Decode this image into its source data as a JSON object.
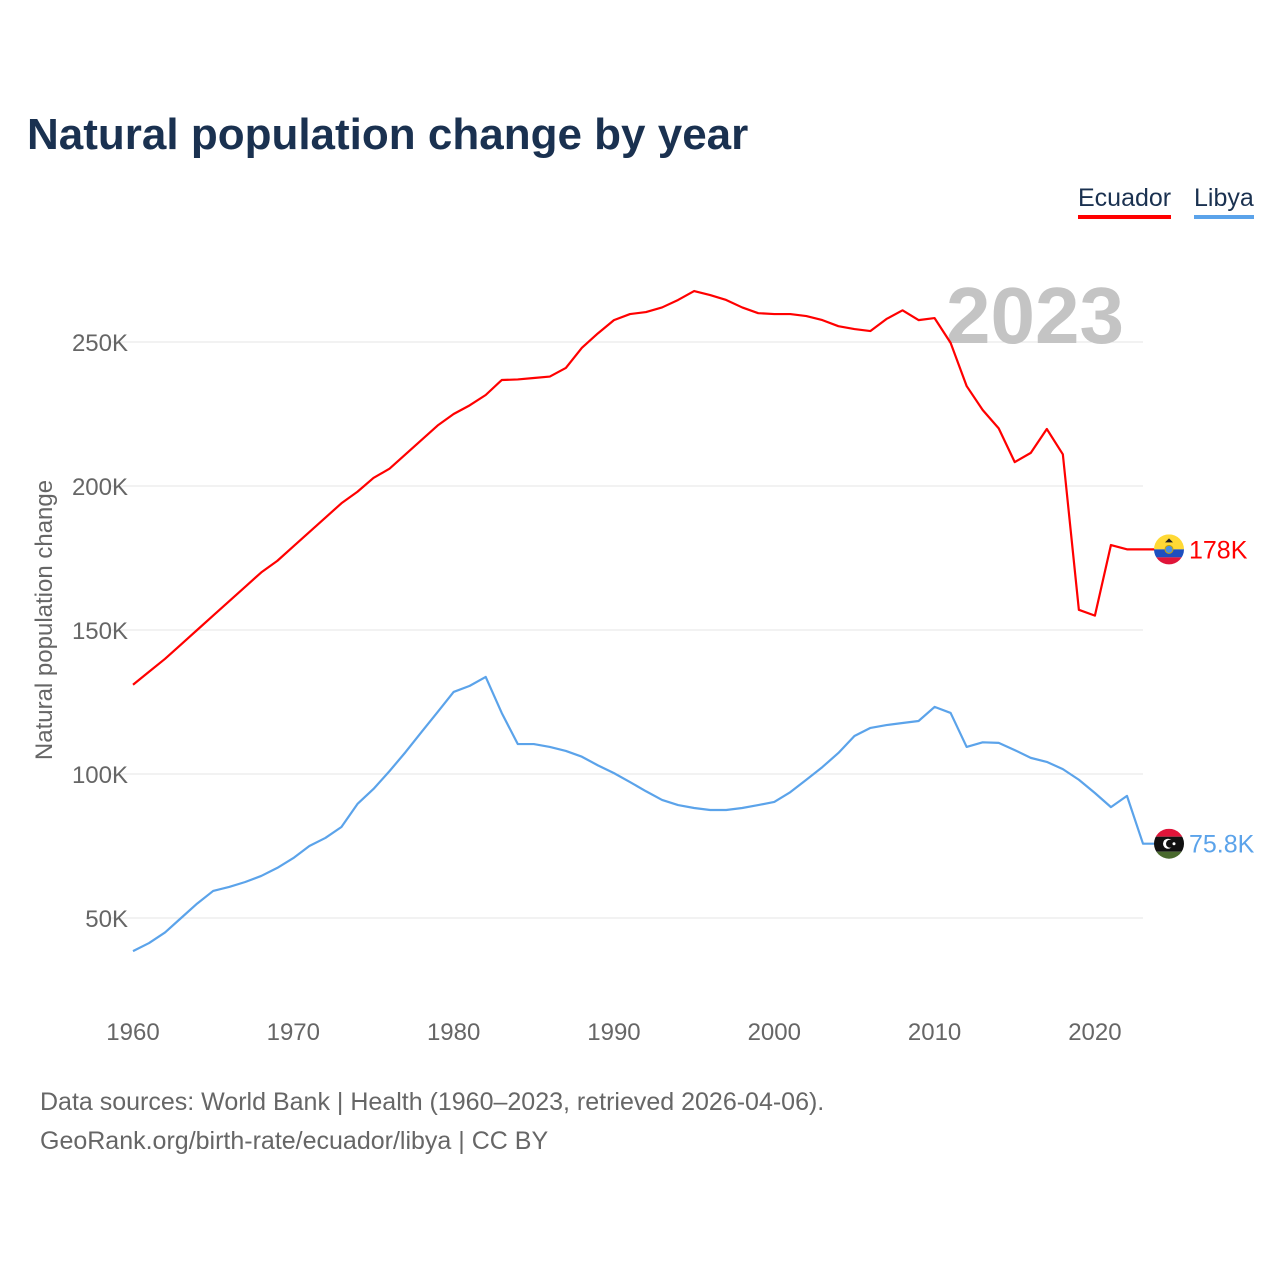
{
  "chart_data": {
    "type": "line",
    "title": "Natural population change by year",
    "xlabel": "",
    "ylabel": "Natural population change",
    "xlim": [
      1960,
      2023
    ],
    "ylim": [
      50000,
      250000
    ],
    "x_ticks": [
      "1960",
      "1970",
      "1980",
      "1990",
      "2000",
      "2010",
      "2020"
    ],
    "y_ticks": [
      {
        "v": 50000,
        "label": "50K"
      },
      {
        "v": 100000,
        "label": "100K"
      },
      {
        "v": 150000,
        "label": "150K"
      },
      {
        "v": 200000,
        "label": "200K"
      },
      {
        "v": 250000,
        "label": "250K"
      }
    ],
    "grid": true,
    "legend_position": "top-right",
    "watermark_year": "2023",
    "years_start": 1960,
    "series": [
      {
        "name": "Ecuador",
        "color": "#ff0000",
        "end_label": "178K",
        "flag": "ecuador-flag",
        "values": [
          131,
          135.5,
          140,
          145,
          150,
          155,
          160,
          165,
          170,
          174,
          179,
          184,
          189,
          194,
          198,
          202.8,
          206,
          211,
          216,
          221,
          225,
          228,
          231.6,
          236.8,
          237,
          237.5,
          238,
          241,
          248,
          253,
          257.6,
          259.7,
          260.4,
          262,
          264.6,
          267.7,
          266.3,
          264.6,
          262,
          260,
          259.7,
          259.7,
          259,
          257.6,
          255.5,
          254.5,
          253.8,
          258,
          261,
          257.6,
          258.3,
          249.7,
          234.7,
          226.4,
          220,
          208.3,
          211.5,
          219.8,
          211,
          157,
          155,
          179.5,
          178,
          178
        ]
      },
      {
        "name": "Libya",
        "color": "#5ba3ea",
        "end_label": "75.8K",
        "flag": "libya-flag",
        "values": [
          38.5,
          41.3,
          45,
          50,
          55,
          59.4,
          60.8,
          62.5,
          64.6,
          67.4,
          70.8,
          75,
          77.8,
          81.6,
          89.6,
          94.8,
          101,
          107.6,
          114.6,
          121.5,
          128.5,
          130.6,
          133.7,
          121.2,
          110.4,
          110.4,
          109.4,
          108,
          106,
          103,
          100.3,
          97.2,
          94,
          91,
          89.2,
          88.2,
          87.5,
          87.5,
          88.2,
          89.2,
          90.3,
          93.7,
          98,
          102.4,
          107.3,
          113.2,
          116,
          117,
          117.7,
          118.4,
          123.3,
          121.2,
          109.4,
          111,
          110.8,
          108.3,
          105.6,
          104.2,
          101.7,
          98,
          93.4,
          88.5,
          92.4,
          75.8
        ]
      }
    ],
    "value_unit": "thousands"
  },
  "footer": {
    "source": "Data sources: World Bank | Health (1960–2023, retrieved 2026-04-06).",
    "credit": "GeoRank.org/birth-rate/ecuador/libya | CC BY"
  }
}
